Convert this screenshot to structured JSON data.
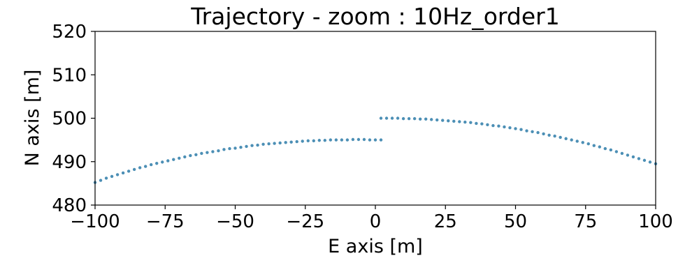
{
  "chart_data": {
    "type": "scatter",
    "title": "Trajectory - zoom : 10Hz_order1",
    "xlabel": "E axis [m]",
    "ylabel": "N axis [m]",
    "xlim": [
      -100,
      100
    ],
    "ylim": [
      480,
      520
    ],
    "xticks": [
      -100,
      -75,
      -50,
      -25,
      0,
      25,
      50,
      75,
      100
    ],
    "yticks": [
      480,
      490,
      500,
      510,
      520
    ],
    "xtick_labels": [
      "−100",
      "−75",
      "−50",
      "−25",
      "0",
      "25",
      "50",
      "75",
      "100"
    ],
    "ytick_labels": [
      "480",
      "490",
      "500",
      "510",
      "520"
    ],
    "grid": false,
    "marker_color": "#4c8fb5",
    "series": [
      {
        "points": [
          [
            -100,
            485.2
          ],
          [
            -98,
            485.7
          ],
          [
            -96,
            486.2
          ],
          [
            -94,
            486.6
          ],
          [
            -92,
            487.0
          ],
          [
            -90,
            487.4
          ],
          [
            -88,
            487.8
          ],
          [
            -86,
            488.2
          ],
          [
            -84,
            488.6
          ],
          [
            -82,
            488.9
          ],
          [
            -80,
            489.3
          ],
          [
            -78,
            489.6
          ],
          [
            -76,
            489.9
          ],
          [
            -74,
            490.2
          ],
          [
            -72,
            490.5
          ],
          [
            -70,
            490.8
          ],
          [
            -68,
            491.1
          ],
          [
            -66,
            491.4
          ],
          [
            -64,
            491.6
          ],
          [
            -62,
            491.9
          ],
          [
            -60,
            492.1
          ],
          [
            -58,
            492.3
          ],
          [
            -56,
            492.5
          ],
          [
            -54,
            492.8
          ],
          [
            -52,
            493.0
          ],
          [
            -50,
            493.1
          ],
          [
            -48,
            493.3
          ],
          [
            -46,
            493.5
          ],
          [
            -44,
            493.7
          ],
          [
            -42,
            493.8
          ],
          [
            -40,
            494.0
          ],
          [
            -38,
            494.1
          ],
          [
            -36,
            494.2
          ],
          [
            -34,
            494.3
          ],
          [
            -32,
            494.4
          ],
          [
            -30,
            494.5
          ],
          [
            -28,
            494.6
          ],
          [
            -26,
            494.7
          ],
          [
            -24,
            494.8
          ],
          [
            -22,
            494.8
          ],
          [
            -20,
            494.9
          ],
          [
            -18,
            494.9
          ],
          [
            -16,
            495.0
          ],
          [
            -14,
            495.0
          ],
          [
            -12,
            495.0
          ],
          [
            -10,
            495.0
          ],
          [
            -8,
            495.1
          ],
          [
            -6,
            495.1
          ],
          [
            -4,
            495.1
          ],
          [
            -2,
            495.0
          ],
          [
            0,
            495.0
          ],
          [
            2,
            495.0
          ]
        ]
      },
      {
        "points": [
          [
            2,
            500.0
          ],
          [
            4,
            500.0
          ],
          [
            6,
            500.0
          ],
          [
            8,
            500.0
          ],
          [
            10,
            499.9
          ],
          [
            12,
            499.9
          ],
          [
            14,
            499.9
          ],
          [
            16,
            499.8
          ],
          [
            18,
            499.8
          ],
          [
            20,
            499.7
          ],
          [
            22,
            499.6
          ],
          [
            24,
            499.5
          ],
          [
            26,
            499.4
          ],
          [
            28,
            499.3
          ],
          [
            30,
            499.2
          ],
          [
            32,
            499.1
          ],
          [
            34,
            499.0
          ],
          [
            36,
            498.8
          ],
          [
            38,
            498.7
          ],
          [
            40,
            498.5
          ],
          [
            42,
            498.3
          ],
          [
            44,
            498.2
          ],
          [
            46,
            498.0
          ],
          [
            48,
            497.8
          ],
          [
            50,
            497.6
          ],
          [
            52,
            497.4
          ],
          [
            54,
            497.1
          ],
          [
            56,
            496.9
          ],
          [
            58,
            496.7
          ],
          [
            60,
            496.4
          ],
          [
            62,
            496.1
          ],
          [
            64,
            495.9
          ],
          [
            66,
            495.6
          ],
          [
            68,
            495.3
          ],
          [
            70,
            495.0
          ],
          [
            72,
            494.7
          ],
          [
            74,
            494.4
          ],
          [
            76,
            494.1
          ],
          [
            78,
            493.7
          ],
          [
            80,
            493.4
          ],
          [
            82,
            493.0
          ],
          [
            84,
            492.7
          ],
          [
            86,
            492.3
          ],
          [
            88,
            491.9
          ],
          [
            90,
            491.5
          ],
          [
            92,
            491.1
          ],
          [
            94,
            490.7
          ],
          [
            96,
            490.3
          ],
          [
            98,
            489.9
          ],
          [
            100,
            489.5
          ]
        ]
      }
    ]
  }
}
